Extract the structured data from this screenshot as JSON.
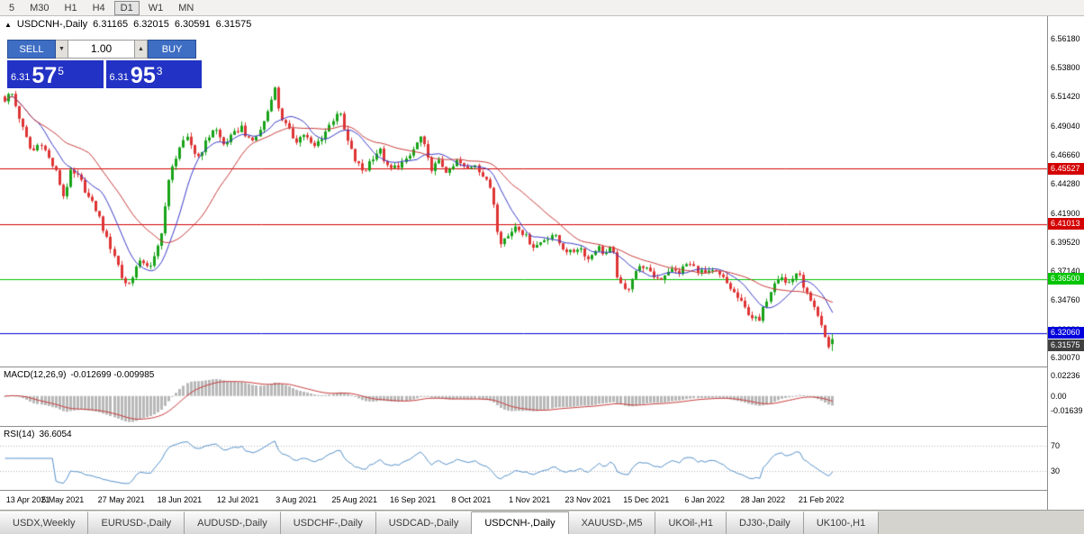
{
  "toolbar": {
    "timeframes": [
      {
        "label": "5",
        "active": false
      },
      {
        "label": "M30",
        "active": false
      },
      {
        "label": "H1",
        "active": false
      },
      {
        "label": "H4",
        "active": false
      },
      {
        "label": "D1",
        "active": true
      },
      {
        "label": "W1",
        "active": false
      },
      {
        "label": "MN",
        "active": false
      }
    ]
  },
  "header": {
    "collapse_arrow": "▲",
    "symbol": "USDCNH-,Daily",
    "open": "6.31165",
    "high": "6.32015",
    "low": "6.30591",
    "close": "6.31575"
  },
  "trade_panel": {
    "sell_label": "SELL",
    "buy_label": "BUY",
    "volume": "1.00",
    "spin_up_icon": "▲",
    "spin_down_icon": "▼",
    "sell_price": {
      "prefix": "6.31",
      "big": "57",
      "sup": "5"
    },
    "buy_price": {
      "prefix": "6.31",
      "big": "95",
      "sup": "3"
    }
  },
  "price_axis": {
    "ticks": [
      "6.56180",
      "6.53800",
      "6.51420",
      "6.49040",
      "6.46660",
      "6.44280",
      "6.41900",
      "6.39520",
      "6.37140",
      "6.34760",
      "6.32380",
      "6.30070"
    ]
  },
  "levels": [
    {
      "label": "6.45527",
      "value": 6.45527,
      "color": "#D40000"
    },
    {
      "label": "6.41013",
      "value": 6.41013,
      "color": "#D40000"
    },
    {
      "label": "6.36500",
      "value": 6.365,
      "color": "#00C400"
    },
    {
      "label": "6.32060",
      "value": 6.3206,
      "color": "#0000DC"
    }
  ],
  "current_price": {
    "label": "6.31575",
    "value": 6.31575,
    "color": "#404040"
  },
  "macd_panel": {
    "label": "MACD(12,26,9)",
    "values": "-0.012699 -0.009985",
    "axis": [
      "0.02236",
      "0.00",
      "-0.01639"
    ],
    "range": [
      -0.033,
      0.0315
    ]
  },
  "rsi_panel": {
    "label": "RSI(14)",
    "value": "36.6054",
    "axis": [
      "70",
      "30"
    ],
    "levels": [
      70,
      30
    ],
    "range": [
      0,
      100
    ]
  },
  "date_axis": {
    "labels": [
      "13 Apr 2021",
      "5 May 2021",
      "27 May 2021",
      "18 Jun 2021",
      "12 Jul 2021",
      "3 Aug 2021",
      "25 Aug 2021",
      "16 Sep 2021",
      "8 Oct 2021",
      "1 Nov 2021",
      "23 Nov 2021",
      "15 Dec 2021",
      "6 Jan 2022",
      "28 Jan 2022",
      "21 Feb 2022"
    ],
    "candles_per_label": 16
  },
  "tabs": [
    {
      "label": "USDX,Weekly",
      "active": false
    },
    {
      "label": "EURUSD-,Daily",
      "active": false
    },
    {
      "label": "AUDUSD-,Daily",
      "active": false
    },
    {
      "label": "USDCHF-,Daily",
      "active": false
    },
    {
      "label": "USDCAD-,Daily",
      "active": false
    },
    {
      "label": "USDCNH-,Daily",
      "active": true
    },
    {
      "label": "XAUUSD-,M5",
      "active": false
    },
    {
      "label": "UKOil-,H1",
      "active": false
    },
    {
      "label": "DJ30-,Daily",
      "active": false
    },
    {
      "label": "UK100-,H1",
      "active": false
    }
  ],
  "chart_data": {
    "type": "candlestick",
    "title": "USDCNH-,Daily",
    "x_range": [
      "13 Apr 2021",
      "4 Mar 2022"
    ],
    "y_range": [
      6.2933,
      6.5802
    ],
    "num_candles": 228,
    "spacing": 4.05,
    "x_offset": 5,
    "noise": 0.005,
    "wick": 0.0035,
    "last_open": 6.31165,
    "last_high": 6.32015,
    "last_low": 6.30591,
    "last_close": 6.31575,
    "ma_fast_period": 10,
    "ma_slow_period": 24,
    "indicators": [
      {
        "name": "MACD",
        "params": [
          12,
          26,
          9
        ],
        "current": [
          -0.012699,
          -0.009985
        ]
      },
      {
        "name": "RSI",
        "params": [
          14
        ],
        "current": 36.6054
      }
    ],
    "path": [
      [
        0.0,
        6.512
      ],
      [
        0.008,
        6.518
      ],
      [
        0.022,
        6.488
      ],
      [
        0.033,
        6.468
      ],
      [
        0.043,
        6.478
      ],
      [
        0.054,
        6.462
      ],
      [
        0.062,
        6.452
      ],
      [
        0.071,
        6.432
      ],
      [
        0.079,
        6.452
      ],
      [
        0.09,
        6.448
      ],
      [
        0.101,
        6.432
      ],
      [
        0.112,
        6.42
      ],
      [
        0.123,
        6.398
      ],
      [
        0.134,
        6.382
      ],
      [
        0.142,
        6.364
      ],
      [
        0.149,
        6.36
      ],
      [
        0.158,
        6.374
      ],
      [
        0.166,
        6.38
      ],
      [
        0.177,
        6.374
      ],
      [
        0.188,
        6.398
      ],
      [
        0.199,
        6.448
      ],
      [
        0.21,
        6.472
      ],
      [
        0.221,
        6.48
      ],
      [
        0.232,
        6.464
      ],
      [
        0.242,
        6.476
      ],
      [
        0.253,
        6.49
      ],
      [
        0.264,
        6.475
      ],
      [
        0.275,
        6.482
      ],
      [
        0.286,
        6.49
      ],
      [
        0.297,
        6.476
      ],
      [
        0.308,
        6.486
      ],
      [
        0.318,
        6.504
      ],
      [
        0.325,
        6.524
      ],
      [
        0.332,
        6.5
      ],
      [
        0.34,
        6.49
      ],
      [
        0.351,
        6.478
      ],
      [
        0.362,
        6.484
      ],
      [
        0.373,
        6.472
      ],
      [
        0.384,
        6.482
      ],
      [
        0.395,
        6.494
      ],
      [
        0.403,
        6.504
      ],
      [
        0.412,
        6.481
      ],
      [
        0.423,
        6.462
      ],
      [
        0.434,
        6.452
      ],
      [
        0.442,
        6.463
      ],
      [
        0.453,
        6.471
      ],
      [
        0.464,
        6.454
      ],
      [
        0.475,
        6.458
      ],
      [
        0.486,
        6.462
      ],
      [
        0.495,
        6.473
      ],
      [
        0.503,
        6.482
      ],
      [
        0.514,
        6.455
      ],
      [
        0.525,
        6.461
      ],
      [
        0.536,
        6.451
      ],
      [
        0.547,
        6.462
      ],
      [
        0.558,
        6.454
      ],
      [
        0.568,
        6.46
      ],
      [
        0.579,
        6.447
      ],
      [
        0.588,
        6.438
      ],
      [
        0.597,
        6.395
      ],
      [
        0.608,
        6.4
      ],
      [
        0.618,
        6.41
      ],
      [
        0.629,
        6.4
      ],
      [
        0.64,
        6.391
      ],
      [
        0.651,
        6.397
      ],
      [
        0.662,
        6.402
      ],
      [
        0.673,
        6.391
      ],
      [
        0.684,
        6.386
      ],
      [
        0.694,
        6.392
      ],
      [
        0.705,
        6.381
      ],
      [
        0.716,
        6.392
      ],
      [
        0.725,
        6.385
      ],
      [
        0.734,
        6.391
      ],
      [
        0.742,
        6.361
      ],
      [
        0.751,
        6.354
      ],
      [
        0.76,
        6.371
      ],
      [
        0.771,
        6.376
      ],
      [
        0.781,
        6.368
      ],
      [
        0.792,
        6.365
      ],
      [
        0.803,
        6.373
      ],
      [
        0.814,
        6.37
      ],
      [
        0.825,
        6.378
      ],
      [
        0.836,
        6.373
      ],
      [
        0.847,
        6.369
      ],
      [
        0.857,
        6.371
      ],
      [
        0.868,
        6.365
      ],
      [
        0.877,
        6.357
      ],
      [
        0.886,
        6.349
      ],
      [
        0.894,
        6.341
      ],
      [
        0.903,
        6.334
      ],
      [
        0.912,
        6.33
      ],
      [
        0.918,
        6.344
      ],
      [
        0.925,
        6.356
      ],
      [
        0.931,
        6.366
      ],
      [
        0.938,
        6.368
      ],
      [
        0.944,
        6.36
      ],
      [
        0.951,
        6.365
      ],
      [
        0.957,
        6.371
      ],
      [
        0.964,
        6.361
      ],
      [
        0.97,
        6.351
      ],
      [
        0.977,
        6.341
      ],
      [
        0.984,
        6.331
      ],
      [
        0.99,
        6.319
      ],
      [
        0.996,
        6.309
      ],
      [
        1.0,
        6.3158
      ]
    ],
    "colors": {
      "up": "#18A318",
      "down": "#DE3434",
      "ma_fast": "#3A3AC8",
      "ma_slow": "#C83A3A",
      "macd_hist": "#B8B8B8",
      "macd_signal": "#C83A3A",
      "rsi": "#5590C8"
    }
  }
}
